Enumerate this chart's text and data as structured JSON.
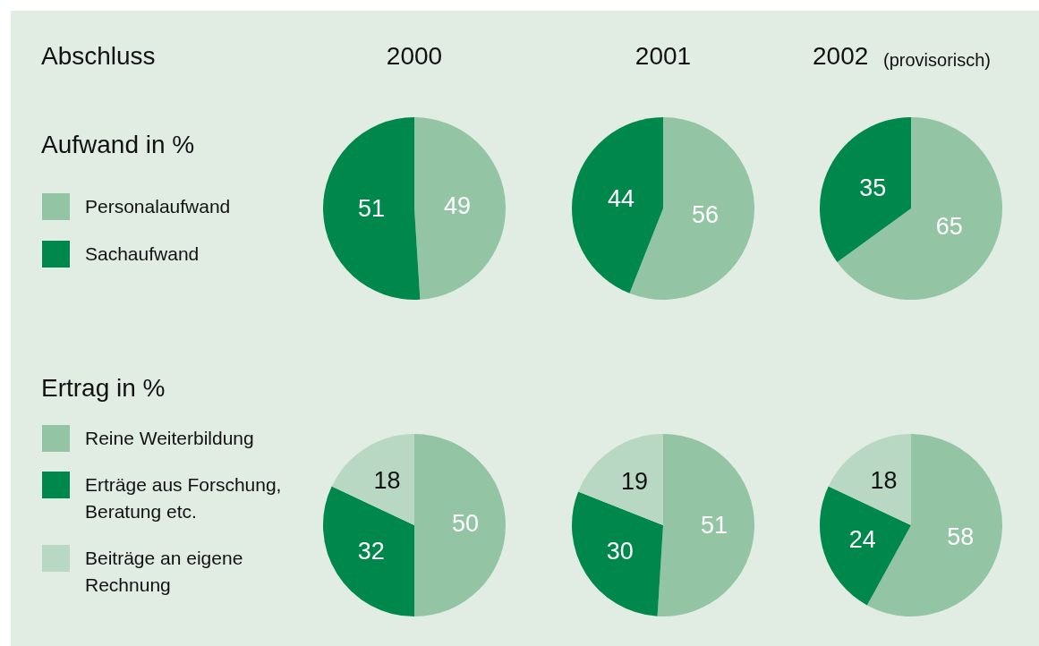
{
  "chart_data": [
    {
      "type": "other",
      "annotations": [
        "Abschluss",
        "2000",
        "2001",
        "2002",
        "(provisorisch)"
      ]
    },
    {
      "type": "pie",
      "title": "Aufwand in %",
      "legend": "left",
      "data_labels": true,
      "categories": [
        "Personalaufwand",
        "Sachaufwand"
      ],
      "values": [
        49,
        51
      ],
      "colors": [
        "#93c4a4",
        "#00874b"
      ]
    },
    {
      "type": "pie",
      "data_labels": true,
      "categories": [
        null,
        null
      ],
      "values": [
        56,
        44
      ],
      "colors": [
        "#93c4a4",
        "#00874b"
      ]
    },
    {
      "type": "pie",
      "data_labels": true,
      "categories": [
        null,
        null
      ],
      "values": [
        65,
        35
      ],
      "colors": [
        "#93c4a4",
        "#00874b"
      ]
    },
    {
      "type": "pie",
      "title": "Ertrag in %",
      "legend": "left",
      "data_labels": true,
      "categories": [
        "Reine Weiterbildung",
        "Erträge aus Forschung, Beratung etc.",
        "Beiträge an eigene Rechnung"
      ],
      "values": [
        50,
        32,
        18
      ],
      "colors": [
        "#93c4a4",
        "#00874b",
        "#b8d8c3"
      ]
    },
    {
      "type": "pie",
      "data_labels": true,
      "categories": [
        null,
        null,
        null
      ],
      "values": [
        51,
        30,
        19
      ],
      "colors": [
        "#93c4a4",
        "#00874b",
        "#b8d8c3"
      ]
    },
    {
      "type": "pie",
      "data_labels": true,
      "categories": [
        null,
        null,
        null
      ],
      "values": [
        58,
        24,
        18
      ],
      "colors": [
        "#93c4a4",
        "#00874b",
        "#b8d8c3"
      ]
    }
  ]
}
